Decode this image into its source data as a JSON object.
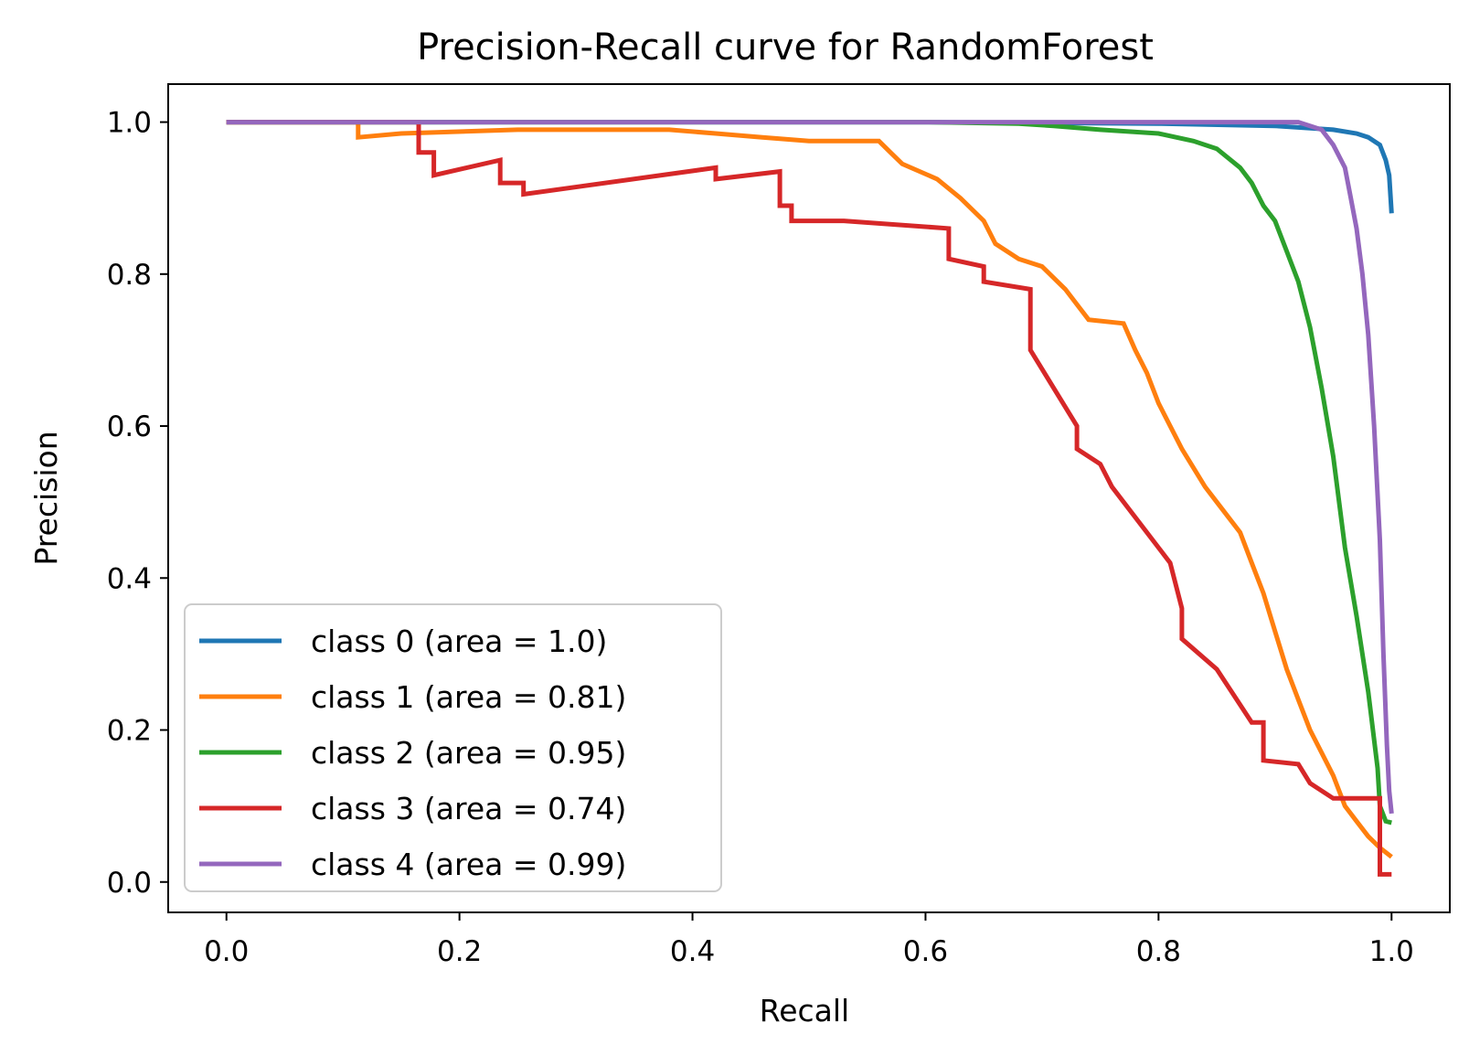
{
  "chart_data": {
    "type": "line",
    "title": "Precision-Recall curve for RandomForest",
    "xlabel": "Recall",
    "ylabel": "Precision",
    "xlim": [
      -0.05,
      1.05
    ],
    "ylim": [
      -0.04,
      1.05
    ],
    "xticks": [
      0.0,
      0.2,
      0.4,
      0.6,
      0.8,
      1.0
    ],
    "yticks": [
      0.0,
      0.2,
      0.4,
      0.6,
      0.8,
      1.0
    ],
    "xtick_labels": [
      "0.0",
      "0.2",
      "0.4",
      "0.6",
      "0.8",
      "1.0"
    ],
    "ytick_labels": [
      "0.0",
      "0.2",
      "0.4",
      "0.6",
      "0.8",
      "1.0"
    ],
    "legend_position": "lower-left",
    "series": [
      {
        "name": "class 0 (area = 1.0)",
        "color": "#1f77b4",
        "points": [
          [
            0.0,
            1.0
          ],
          [
            0.3,
            1.0
          ],
          [
            0.6,
            1.0
          ],
          [
            0.8,
            0.998
          ],
          [
            0.9,
            0.995
          ],
          [
            0.95,
            0.99
          ],
          [
            0.97,
            0.985
          ],
          [
            0.98,
            0.98
          ],
          [
            0.99,
            0.97
          ],
          [
            0.995,
            0.95
          ],
          [
            0.998,
            0.93
          ],
          [
            1.0,
            0.88
          ]
        ]
      },
      {
        "name": "class 1 (area = 0.81)",
        "color": "#ff7f0e",
        "points": [
          [
            0.0,
            1.0
          ],
          [
            0.113,
            1.0
          ],
          [
            0.113,
            0.98
          ],
          [
            0.15,
            0.985
          ],
          [
            0.25,
            0.99
          ],
          [
            0.38,
            0.99
          ],
          [
            0.42,
            0.985
          ],
          [
            0.46,
            0.98
          ],
          [
            0.5,
            0.975
          ],
          [
            0.56,
            0.975
          ],
          [
            0.57,
            0.96
          ],
          [
            0.58,
            0.945
          ],
          [
            0.61,
            0.925
          ],
          [
            0.63,
            0.9
          ],
          [
            0.65,
            0.87
          ],
          [
            0.66,
            0.84
          ],
          [
            0.68,
            0.82
          ],
          [
            0.7,
            0.81
          ],
          [
            0.72,
            0.78
          ],
          [
            0.73,
            0.76
          ],
          [
            0.74,
            0.74
          ],
          [
            0.77,
            0.735
          ],
          [
            0.78,
            0.7
          ],
          [
            0.79,
            0.67
          ],
          [
            0.8,
            0.63
          ],
          [
            0.81,
            0.6
          ],
          [
            0.82,
            0.57
          ],
          [
            0.84,
            0.52
          ],
          [
            0.85,
            0.5
          ],
          [
            0.87,
            0.46
          ],
          [
            0.88,
            0.42
          ],
          [
            0.89,
            0.38
          ],
          [
            0.9,
            0.33
          ],
          [
            0.91,
            0.28
          ],
          [
            0.92,
            0.24
          ],
          [
            0.93,
            0.2
          ],
          [
            0.94,
            0.17
          ],
          [
            0.95,
            0.14
          ],
          [
            0.96,
            0.1
          ],
          [
            0.97,
            0.08
          ],
          [
            0.98,
            0.06
          ],
          [
            0.99,
            0.045
          ],
          [
            1.0,
            0.033
          ]
        ]
      },
      {
        "name": "class 2 (area = 0.95)",
        "color": "#2ca02c",
        "points": [
          [
            0.0,
            1.0
          ],
          [
            0.6,
            1.0
          ],
          [
            0.68,
            0.998
          ],
          [
            0.71,
            0.995
          ],
          [
            0.75,
            0.99
          ],
          [
            0.8,
            0.985
          ],
          [
            0.83,
            0.975
          ],
          [
            0.85,
            0.965
          ],
          [
            0.87,
            0.94
          ],
          [
            0.88,
            0.92
          ],
          [
            0.89,
            0.89
          ],
          [
            0.9,
            0.87
          ],
          [
            0.91,
            0.83
          ],
          [
            0.92,
            0.79
          ],
          [
            0.93,
            0.73
          ],
          [
            0.94,
            0.65
          ],
          [
            0.95,
            0.56
          ],
          [
            0.96,
            0.44
          ],
          [
            0.97,
            0.35
          ],
          [
            0.98,
            0.25
          ],
          [
            0.988,
            0.15
          ],
          [
            0.99,
            0.1
          ],
          [
            0.995,
            0.08
          ],
          [
            1.0,
            0.078
          ]
        ]
      },
      {
        "name": "class 3 (area = 0.74)",
        "color": "#d62728",
        "points": [
          [
            0.0,
            1.0
          ],
          [
            0.165,
            1.0
          ],
          [
            0.165,
            0.96
          ],
          [
            0.178,
            0.96
          ],
          [
            0.178,
            0.93
          ],
          [
            0.235,
            0.95
          ],
          [
            0.235,
            0.92
          ],
          [
            0.255,
            0.92
          ],
          [
            0.255,
            0.905
          ],
          [
            0.42,
            0.94
          ],
          [
            0.42,
            0.925
          ],
          [
            0.475,
            0.935
          ],
          [
            0.475,
            0.89
          ],
          [
            0.485,
            0.89
          ],
          [
            0.485,
            0.87
          ],
          [
            0.53,
            0.87
          ],
          [
            0.62,
            0.86
          ],
          [
            0.62,
            0.82
          ],
          [
            0.65,
            0.81
          ],
          [
            0.65,
            0.79
          ],
          [
            0.69,
            0.78
          ],
          [
            0.69,
            0.7
          ],
          [
            0.73,
            0.6
          ],
          [
            0.73,
            0.57
          ],
          [
            0.75,
            0.55
          ],
          [
            0.76,
            0.52
          ],
          [
            0.79,
            0.46
          ],
          [
            0.81,
            0.42
          ],
          [
            0.82,
            0.36
          ],
          [
            0.82,
            0.32
          ],
          [
            0.85,
            0.28
          ],
          [
            0.88,
            0.21
          ],
          [
            0.89,
            0.21
          ],
          [
            0.89,
            0.16
          ],
          [
            0.92,
            0.155
          ],
          [
            0.93,
            0.13
          ],
          [
            0.95,
            0.11
          ],
          [
            0.99,
            0.11
          ],
          [
            0.99,
            0.01
          ],
          [
            1.0,
            0.01
          ]
        ]
      },
      {
        "name": "class 4 (area = 0.99)",
        "color": "#9467bd",
        "points": [
          [
            0.0,
            1.0
          ],
          [
            0.92,
            1.0
          ],
          [
            0.93,
            0.995
          ],
          [
            0.94,
            0.99
          ],
          [
            0.95,
            0.97
          ],
          [
            0.96,
            0.94
          ],
          [
            0.965,
            0.9
          ],
          [
            0.97,
            0.86
          ],
          [
            0.975,
            0.8
          ],
          [
            0.98,
            0.72
          ],
          [
            0.985,
            0.6
          ],
          [
            0.99,
            0.45
          ],
          [
            0.993,
            0.3
          ],
          [
            0.996,
            0.18
          ],
          [
            0.998,
            0.12
          ],
          [
            1.0,
            0.09
          ]
        ]
      }
    ]
  }
}
